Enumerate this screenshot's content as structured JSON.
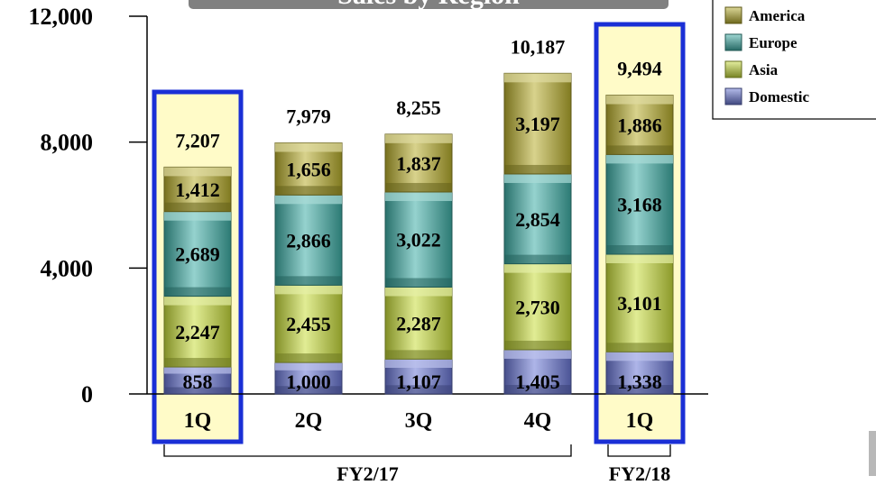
{
  "chart_data": {
    "type": "bar",
    "stacked": true,
    "title": "Sales by Region",
    "categories": [
      "1Q",
      "2Q",
      "3Q",
      "4Q",
      "1Q"
    ],
    "groups": [
      {
        "label": "FY2/17",
        "categories": [
          0,
          1,
          2,
          3
        ]
      },
      {
        "label": "FY2/18",
        "categories": [
          4
        ]
      }
    ],
    "highlighted_categories": [
      0,
      4
    ],
    "series": [
      {
        "name": "Domestic",
        "values": [
          858,
          1000,
          1107,
          1405,
          1338
        ],
        "labels": [
          "858",
          "1,000",
          "1,107",
          "1,405",
          "1,338"
        ],
        "color": "#6b78d6"
      },
      {
        "name": "Asia",
        "values": [
          2247,
          2455,
          2287,
          2730,
          3101
        ],
        "labels": [
          "2,247",
          "2,455",
          "2,287",
          "2,730",
          "3,101"
        ],
        "color": "#c8dc3c"
      },
      {
        "name": "Europe",
        "values": [
          2689,
          2866,
          3022,
          2854,
          3168
        ],
        "labels": [
          "2,689",
          "2,866",
          "3,022",
          "2,854",
          "3,168"
        ],
        "color": "#3faea6"
      },
      {
        "name": "America",
        "values": [
          1412,
          1656,
          1837,
          3197,
          1886
        ],
        "labels": [
          "1,412",
          "1,656",
          "1,837",
          "3,197",
          "1,886"
        ],
        "color": "#b8ae2e"
      }
    ],
    "totals": [
      7207,
      7979,
      8255,
      10187,
      9494
    ],
    "total_labels": [
      "7,207",
      "7,979",
      "8,255",
      "10,187",
      "9,494"
    ],
    "yticks": [
      0,
      4000,
      8000,
      12000
    ],
    "ytick_labels": [
      "0",
      "4,000",
      "8,000",
      "12,000"
    ],
    "ylim": [
      0,
      12000
    ],
    "legend_order": [
      "America",
      "Europe",
      "Asia",
      "Domestic"
    ],
    "legend_position": "top-right",
    "highlight_color": "#1a2fd6",
    "highlight_fill": "#fffbc8",
    "title_bg": "#808080"
  }
}
